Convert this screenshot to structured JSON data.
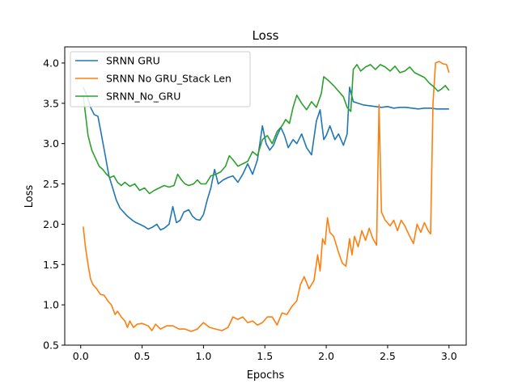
{
  "chart_data": {
    "type": "line",
    "title": "Loss",
    "xlabel": "Epochs",
    "ylabel": "Loss",
    "xlim": [
      -0.13,
      3.14
    ],
    "ylim": [
      0.5,
      4.2
    ],
    "xticks": [
      0.0,
      0.5,
      1.0,
      1.5,
      2.0,
      2.5,
      3.0
    ],
    "xtick_labels": [
      "0.0",
      "0.5",
      "1.0",
      "1.5",
      "2.0",
      "2.5",
      "3.0"
    ],
    "yticks": [
      0.5,
      1.0,
      1.5,
      2.0,
      2.5,
      3.0,
      3.5,
      4.0
    ],
    "ytick_labels": [
      "0.5",
      "1.0",
      "1.5",
      "2.0",
      "2.5",
      "3.0",
      "3.5",
      "4.0"
    ],
    "grid": false,
    "legend_position": "top-left",
    "series": [
      {
        "name": "SRNN GRU",
        "color": "#1f77b4",
        "points": [
          [
            0.02,
            3.7
          ],
          [
            0.05,
            3.6
          ],
          [
            0.08,
            3.45
          ],
          [
            0.11,
            3.36
          ],
          [
            0.14,
            3.34
          ],
          [
            0.17,
            3.1
          ],
          [
            0.2,
            2.85
          ],
          [
            0.23,
            2.6
          ],
          [
            0.26,
            2.45
          ],
          [
            0.29,
            2.3
          ],
          [
            0.32,
            2.2
          ],
          [
            0.35,
            2.15
          ],
          [
            0.38,
            2.1
          ],
          [
            0.42,
            2.05
          ],
          [
            0.45,
            2.02
          ],
          [
            0.48,
            2.0
          ],
          [
            0.52,
            1.97
          ],
          [
            0.55,
            1.94
          ],
          [
            0.58,
            1.96
          ],
          [
            0.62,
            2.0
          ],
          [
            0.65,
            1.93
          ],
          [
            0.68,
            1.95
          ],
          [
            0.72,
            2.0
          ],
          [
            0.75,
            2.22
          ],
          [
            0.78,
            2.02
          ],
          [
            0.81,
            2.05
          ],
          [
            0.84,
            2.15
          ],
          [
            0.88,
            2.18
          ],
          [
            0.91,
            2.1
          ],
          [
            0.94,
            2.06
          ],
          [
            0.97,
            2.05
          ],
          [
            1.0,
            2.12
          ],
          [
            1.03,
            2.3
          ],
          [
            1.06,
            2.45
          ],
          [
            1.09,
            2.68
          ],
          [
            1.12,
            2.5
          ],
          [
            1.16,
            2.55
          ],
          [
            1.2,
            2.58
          ],
          [
            1.24,
            2.6
          ],
          [
            1.28,
            2.52
          ],
          [
            1.32,
            2.62
          ],
          [
            1.36,
            2.75
          ],
          [
            1.4,
            2.62
          ],
          [
            1.44,
            2.8
          ],
          [
            1.48,
            3.22
          ],
          [
            1.51,
            3.0
          ],
          [
            1.54,
            2.92
          ],
          [
            1.57,
            2.98
          ],
          [
            1.6,
            3.1
          ],
          [
            1.63,
            3.2
          ],
          [
            1.66,
            3.1
          ],
          [
            1.69,
            2.95
          ],
          [
            1.73,
            3.05
          ],
          [
            1.76,
            3.0
          ],
          [
            1.8,
            3.12
          ],
          [
            1.84,
            2.95
          ],
          [
            1.88,
            2.86
          ],
          [
            1.92,
            3.28
          ],
          [
            1.95,
            3.42
          ],
          [
            1.98,
            3.05
          ],
          [
            2.0,
            3.1
          ],
          [
            2.03,
            3.22
          ],
          [
            2.07,
            3.05
          ],
          [
            2.1,
            3.12
          ],
          [
            2.14,
            2.98
          ],
          [
            2.17,
            3.12
          ],
          [
            2.19,
            3.7
          ],
          [
            2.22,
            3.52
          ],
          [
            2.26,
            3.5
          ],
          [
            2.3,
            3.48
          ],
          [
            2.35,
            3.47
          ],
          [
            2.4,
            3.46
          ],
          [
            2.45,
            3.45
          ],
          [
            2.5,
            3.46
          ],
          [
            2.55,
            3.44
          ],
          [
            2.6,
            3.45
          ],
          [
            2.65,
            3.45
          ],
          [
            2.7,
            3.44
          ],
          [
            2.75,
            3.43
          ],
          [
            2.8,
            3.44
          ],
          [
            2.85,
            3.44
          ],
          [
            2.9,
            3.43
          ],
          [
            2.95,
            3.43
          ],
          [
            3.0,
            3.43
          ]
        ]
      },
      {
        "name": "SRNN No GRU_Stack Len",
        "color": "#ff7f0e",
        "points": [
          [
            0.02,
            1.97
          ],
          [
            0.04,
            1.7
          ],
          [
            0.06,
            1.5
          ],
          [
            0.08,
            1.32
          ],
          [
            0.1,
            1.25
          ],
          [
            0.13,
            1.2
          ],
          [
            0.16,
            1.13
          ],
          [
            0.19,
            1.12
          ],
          [
            0.22,
            1.05
          ],
          [
            0.25,
            1.0
          ],
          [
            0.28,
            0.88
          ],
          [
            0.3,
            0.92
          ],
          [
            0.33,
            0.85
          ],
          [
            0.36,
            0.8
          ],
          [
            0.38,
            0.72
          ],
          [
            0.4,
            0.8
          ],
          [
            0.43,
            0.72
          ],
          [
            0.46,
            0.76
          ],
          [
            0.5,
            0.77
          ],
          [
            0.55,
            0.74
          ],
          [
            0.58,
            0.68
          ],
          [
            0.61,
            0.76
          ],
          [
            0.65,
            0.7
          ],
          [
            0.7,
            0.74
          ],
          [
            0.75,
            0.74
          ],
          [
            0.8,
            0.7
          ],
          [
            0.85,
            0.7
          ],
          [
            0.9,
            0.67
          ],
          [
            0.95,
            0.7
          ],
          [
            1.0,
            0.78
          ],
          [
            1.05,
            0.72
          ],
          [
            1.1,
            0.7
          ],
          [
            1.15,
            0.68
          ],
          [
            1.2,
            0.72
          ],
          [
            1.24,
            0.85
          ],
          [
            1.28,
            0.82
          ],
          [
            1.32,
            0.85
          ],
          [
            1.36,
            0.78
          ],
          [
            1.4,
            0.8
          ],
          [
            1.44,
            0.75
          ],
          [
            1.48,
            0.78
          ],
          [
            1.52,
            0.85
          ],
          [
            1.56,
            0.85
          ],
          [
            1.6,
            0.75
          ],
          [
            1.64,
            0.9
          ],
          [
            1.68,
            0.88
          ],
          [
            1.72,
            0.98
          ],
          [
            1.76,
            1.05
          ],
          [
            1.79,
            1.25
          ],
          [
            1.82,
            1.35
          ],
          [
            1.86,
            1.2
          ],
          [
            1.9,
            1.3
          ],
          [
            1.93,
            1.62
          ],
          [
            1.95,
            1.42
          ],
          [
            1.97,
            1.82
          ],
          [
            1.99,
            1.75
          ],
          [
            2.01,
            2.08
          ],
          [
            2.03,
            1.9
          ],
          [
            2.06,
            1.85
          ],
          [
            2.1,
            1.65
          ],
          [
            2.13,
            1.52
          ],
          [
            2.16,
            1.48
          ],
          [
            2.19,
            1.82
          ],
          [
            2.21,
            1.62
          ],
          [
            2.23,
            1.85
          ],
          [
            2.26,
            1.72
          ],
          [
            2.29,
            1.92
          ],
          [
            2.32,
            1.8
          ],
          [
            2.35,
            1.95
          ],
          [
            2.38,
            1.82
          ],
          [
            2.41,
            1.74
          ],
          [
            2.43,
            3.48
          ],
          [
            2.45,
            2.15
          ],
          [
            2.48,
            2.05
          ],
          [
            2.52,
            1.98
          ],
          [
            2.55,
            2.05
          ],
          [
            2.58,
            1.92
          ],
          [
            2.61,
            2.05
          ],
          [
            2.64,
            1.98
          ],
          [
            2.68,
            1.85
          ],
          [
            2.71,
            1.76
          ],
          [
            2.74,
            2.0
          ],
          [
            2.77,
            1.9
          ],
          [
            2.8,
            2.02
          ],
          [
            2.83,
            1.92
          ],
          [
            2.85,
            1.88
          ],
          [
            2.87,
            3.5
          ],
          [
            2.89,
            4.0
          ],
          [
            2.92,
            4.02
          ],
          [
            2.95,
            3.99
          ],
          [
            2.98,
            3.98
          ],
          [
            3.0,
            3.88
          ]
        ]
      },
      {
        "name": "SRNN_No_GRU",
        "color": "#2ca02c",
        "points": [
          [
            0.02,
            3.6
          ],
          [
            0.04,
            3.35
          ],
          [
            0.06,
            3.1
          ],
          [
            0.09,
            2.92
          ],
          [
            0.12,
            2.82
          ],
          [
            0.15,
            2.72
          ],
          [
            0.18,
            2.68
          ],
          [
            0.21,
            2.62
          ],
          [
            0.24,
            2.58
          ],
          [
            0.27,
            2.6
          ],
          [
            0.3,
            2.52
          ],
          [
            0.33,
            2.48
          ],
          [
            0.36,
            2.52
          ],
          [
            0.4,
            2.47
          ],
          [
            0.44,
            2.5
          ],
          [
            0.48,
            2.42
          ],
          [
            0.52,
            2.45
          ],
          [
            0.56,
            2.38
          ],
          [
            0.6,
            2.42
          ],
          [
            0.64,
            2.45
          ],
          [
            0.68,
            2.48
          ],
          [
            0.72,
            2.46
          ],
          [
            0.76,
            2.48
          ],
          [
            0.79,
            2.62
          ],
          [
            0.82,
            2.55
          ],
          [
            0.85,
            2.5
          ],
          [
            0.88,
            2.48
          ],
          [
            0.92,
            2.5
          ],
          [
            0.95,
            2.55
          ],
          [
            0.98,
            2.5
          ],
          [
            1.02,
            2.5
          ],
          [
            1.06,
            2.6
          ],
          [
            1.1,
            2.62
          ],
          [
            1.14,
            2.65
          ],
          [
            1.18,
            2.72
          ],
          [
            1.21,
            2.85
          ],
          [
            1.24,
            2.8
          ],
          [
            1.28,
            2.72
          ],
          [
            1.32,
            2.75
          ],
          [
            1.36,
            2.78
          ],
          [
            1.4,
            2.9
          ],
          [
            1.44,
            2.85
          ],
          [
            1.48,
            3.05
          ],
          [
            1.52,
            3.1
          ],
          [
            1.56,
            3.0
          ],
          [
            1.6,
            3.15
          ],
          [
            1.64,
            3.22
          ],
          [
            1.67,
            3.3
          ],
          [
            1.7,
            3.25
          ],
          [
            1.73,
            3.45
          ],
          [
            1.76,
            3.6
          ],
          [
            1.8,
            3.5
          ],
          [
            1.84,
            3.42
          ],
          [
            1.88,
            3.52
          ],
          [
            1.92,
            3.45
          ],
          [
            1.96,
            3.62
          ],
          [
            1.98,
            3.83
          ],
          [
            2.02,
            3.78
          ],
          [
            2.06,
            3.72
          ],
          [
            2.1,
            3.65
          ],
          [
            2.14,
            3.58
          ],
          [
            2.17,
            3.45
          ],
          [
            2.2,
            3.4
          ],
          [
            2.22,
            3.92
          ],
          [
            2.25,
            3.98
          ],
          [
            2.28,
            3.9
          ],
          [
            2.32,
            3.95
          ],
          [
            2.36,
            3.98
          ],
          [
            2.4,
            3.92
          ],
          [
            2.44,
            3.98
          ],
          [
            2.48,
            3.95
          ],
          [
            2.52,
            3.9
          ],
          [
            2.56,
            3.96
          ],
          [
            2.6,
            3.88
          ],
          [
            2.64,
            3.9
          ],
          [
            2.68,
            3.95
          ],
          [
            2.72,
            3.88
          ],
          [
            2.76,
            3.85
          ],
          [
            2.8,
            3.82
          ],
          [
            2.84,
            3.75
          ],
          [
            2.88,
            3.7
          ],
          [
            2.91,
            3.65
          ],
          [
            2.94,
            3.68
          ],
          [
            2.97,
            3.72
          ],
          [
            3.0,
            3.66
          ]
        ]
      }
    ]
  }
}
